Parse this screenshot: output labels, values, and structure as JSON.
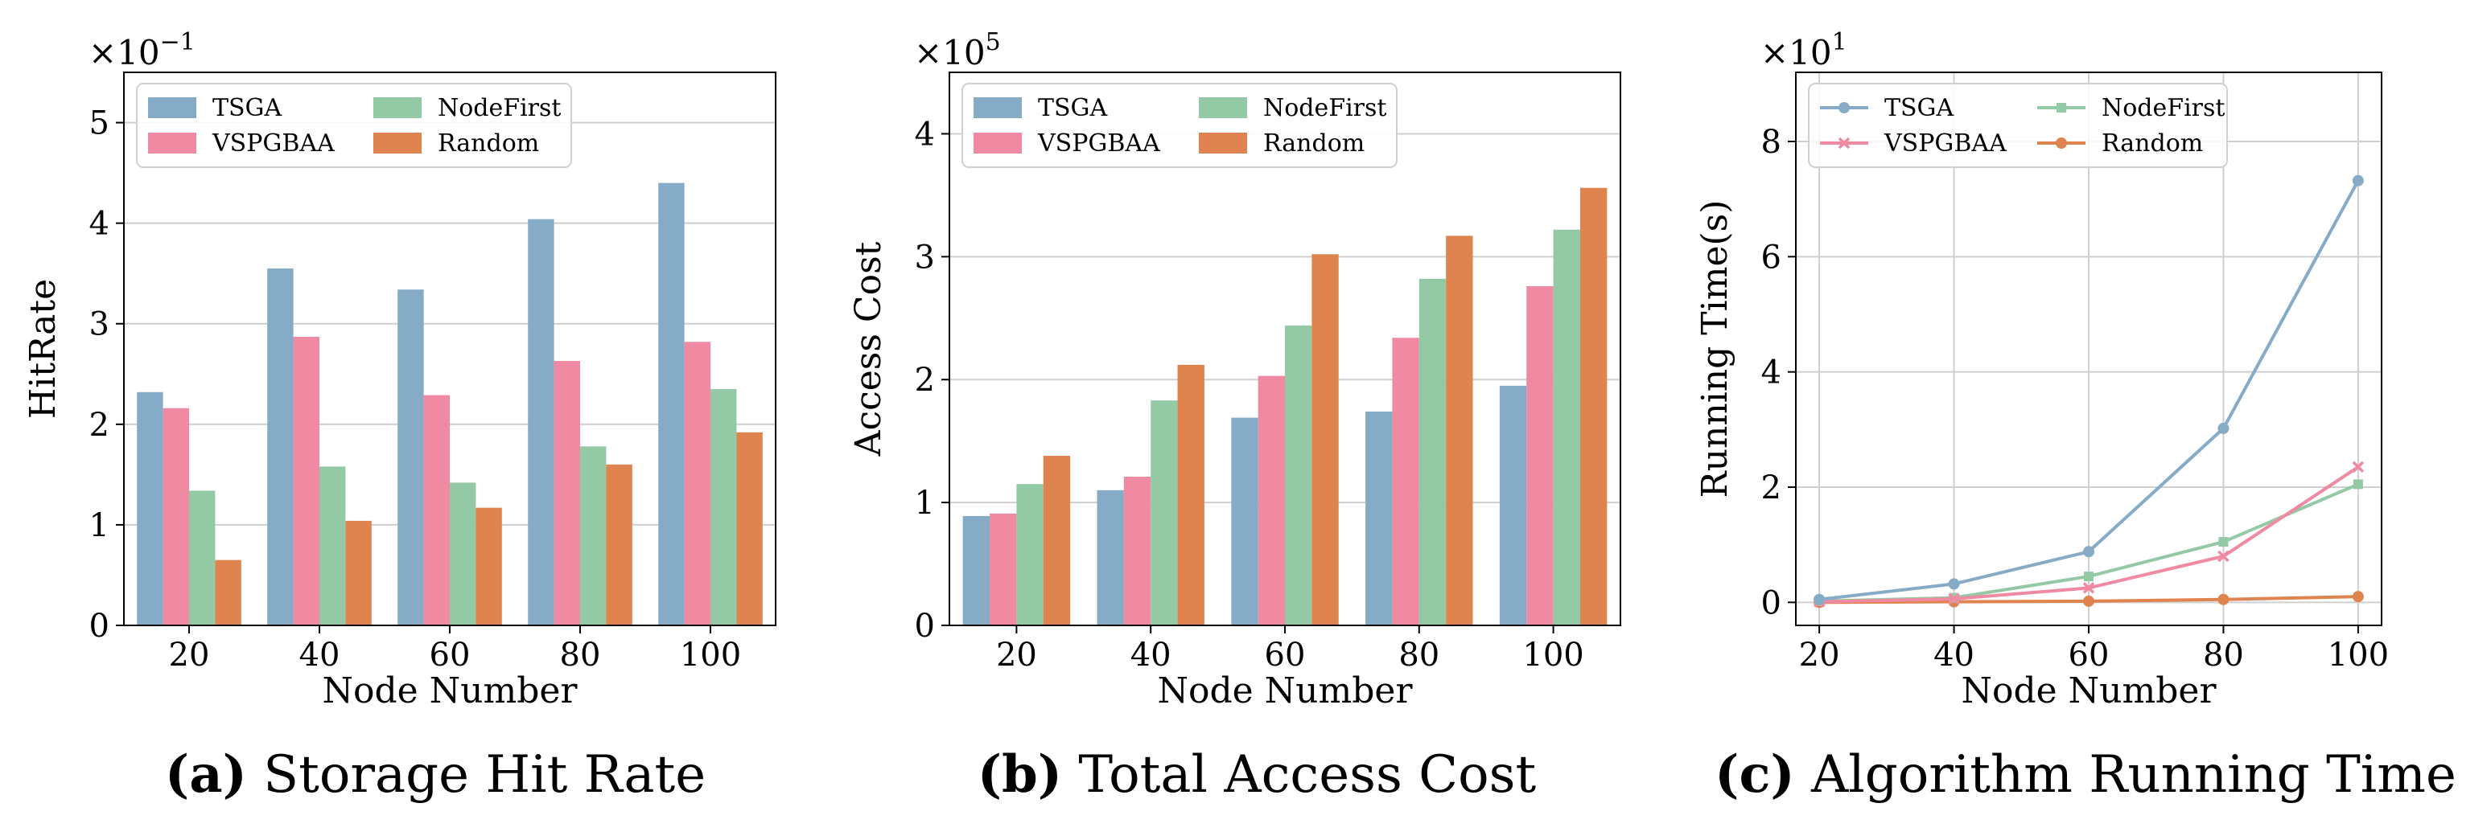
{
  "colors": {
    "TSGA": "#86abc7",
    "VSPGBAA": "#f08aa3",
    "NodeFirst": "#94c9a6",
    "Random": "#e0844f"
  },
  "chart_data": [
    {
      "type": "bar",
      "id": "a",
      "caption_prefix": "(a)",
      "caption_text": " Storage Hit Rate",
      "xlabel": "Node Number",
      "ylabel": "HitRate",
      "sci_multiplier": "×10",
      "sci_exponent": "−1",
      "categories": [
        "20",
        "40",
        "60",
        "80",
        "100"
      ],
      "ylim": [
        0,
        5.5
      ],
      "yticks": [
        0,
        1,
        2,
        3,
        4,
        5
      ],
      "series": [
        {
          "name": "TSGA",
          "values": [
            2.32,
            3.55,
            3.34,
            4.04,
            4.4
          ]
        },
        {
          "name": "VSPGBAA",
          "values": [
            2.16,
            2.87,
            2.29,
            2.63,
            2.82
          ]
        },
        {
          "name": "NodeFirst",
          "values": [
            1.34,
            1.58,
            1.42,
            1.78,
            2.35
          ]
        },
        {
          "name": "Random",
          "values": [
            0.65,
            1.04,
            1.17,
            1.6,
            1.92
          ]
        }
      ]
    },
    {
      "type": "bar",
      "id": "b",
      "caption_prefix": "(b)",
      "caption_text": " Total Access Cost",
      "xlabel": "Node Number",
      "ylabel": "Access Cost",
      "sci_multiplier": "×10",
      "sci_exponent": "5",
      "categories": [
        "20",
        "40",
        "60",
        "80",
        "100"
      ],
      "ylim": [
        0,
        4.5
      ],
      "yticks": [
        0,
        1,
        2,
        3,
        4
      ],
      "series": [
        {
          "name": "TSGA",
          "values": [
            0.89,
            1.1,
            1.69,
            1.74,
            1.95
          ]
        },
        {
          "name": "VSPGBAA",
          "values": [
            0.91,
            1.21,
            2.03,
            2.34,
            2.76
          ]
        },
        {
          "name": "NodeFirst",
          "values": [
            1.15,
            1.83,
            2.44,
            2.82,
            3.22
          ]
        },
        {
          "name": "Random",
          "values": [
            1.38,
            2.12,
            3.02,
            3.17,
            3.56
          ]
        }
      ]
    },
    {
      "type": "line",
      "id": "c",
      "caption_prefix": "(c)",
      "caption_text": " Algorithm Running Time",
      "xlabel": "Node Number",
      "ylabel": "Running Time(s)",
      "sci_multiplier": "×10",
      "sci_exponent": "1",
      "x": [
        20,
        40,
        60,
        80,
        100
      ],
      "xticks": [
        "20",
        "40",
        "60",
        "80",
        "100"
      ],
      "ylim": [
        -0.4,
        9.2
      ],
      "yticks": [
        0,
        2,
        4,
        6,
        8
      ],
      "grid": true,
      "series": [
        {
          "name": "TSGA",
          "marker": "circle",
          "values": [
            0.05,
            0.32,
            0.88,
            3.02,
            7.32
          ]
        },
        {
          "name": "VSPGBAA",
          "marker": "x",
          "values": [
            0.01,
            0.06,
            0.25,
            0.8,
            2.35
          ]
        },
        {
          "name": "NodeFirst",
          "marker": "square",
          "values": [
            0.02,
            0.08,
            0.45,
            1.05,
            2.05
          ]
        },
        {
          "name": "Random",
          "marker": "circle",
          "values": [
            0.0,
            0.01,
            0.02,
            0.05,
            0.1
          ]
        }
      ]
    }
  ]
}
